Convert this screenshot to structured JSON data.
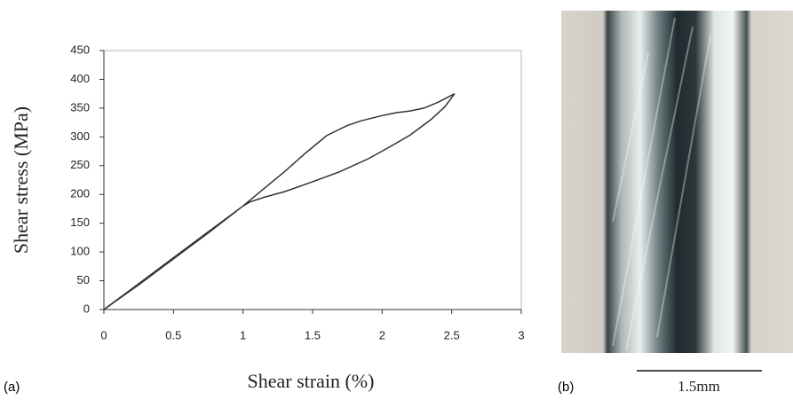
{
  "chart_data": {
    "type": "line",
    "xlabel": "Shear strain (%)",
    "ylabel": "Shear stress (MPa)",
    "series": [
      {
        "color": "#333333",
        "x": [
          0,
          0.25,
          0.5,
          0.75,
          1,
          1.15,
          1.3,
          1.45,
          1.6,
          1.75,
          1.85,
          2,
          2.1,
          2.2,
          2.3,
          2.4,
          2.52,
          2.45,
          2.35,
          2.2,
          2.05,
          1.9,
          1.7,
          1.5,
          1.3,
          1.15,
          1.05,
          1,
          0.75,
          0.5,
          0.25,
          0
        ],
        "values": [
          0,
          45,
          90,
          135,
          180,
          210,
          240,
          272,
          302,
          320,
          328,
          337,
          342,
          345,
          350,
          360,
          375,
          352,
          330,
          303,
          282,
          262,
          240,
          222,
          205,
          195,
          187,
          180,
          133,
          88,
          43,
          0
        ]
      }
    ],
    "xlim": [
      0,
      3
    ],
    "ylim": [
      0,
      450
    ],
    "xticks": [
      0,
      0.5,
      1,
      1.5,
      2,
      2.5,
      3
    ],
    "yticks": [
      0,
      50,
      100,
      150,
      200,
      250,
      300,
      350,
      400,
      450
    ],
    "panel_label": "(a)"
  },
  "photo": {
    "panel_label": "(b)",
    "scale_bar": "1.5mm"
  }
}
